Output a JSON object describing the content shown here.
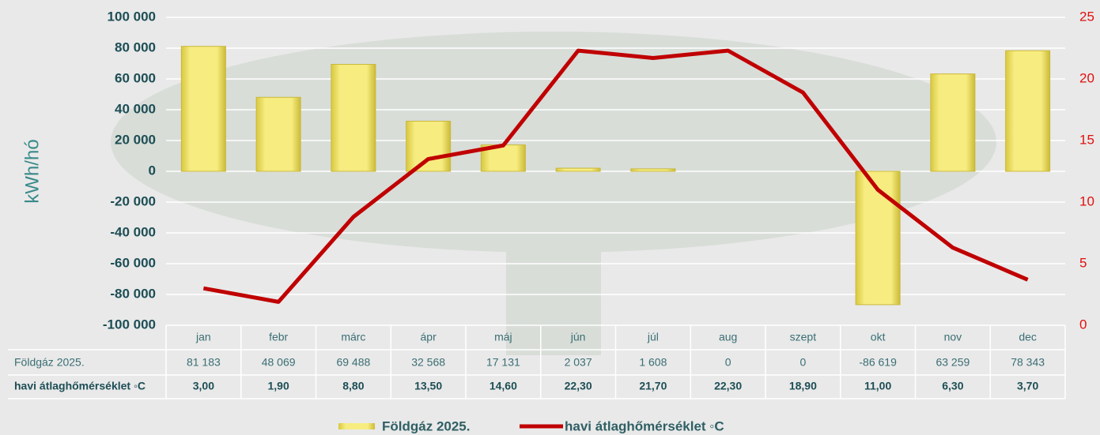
{
  "chart_data": {
    "type": "bar",
    "y_axis_label": "kWh/hó",
    "categories": [
      "jan",
      "febr",
      "márc",
      "ápr",
      "máj",
      "jún",
      "júl",
      "aug",
      "szept",
      "okt",
      "nov",
      "dec"
    ],
    "series": [
      {
        "name": "Földgáz 2025.",
        "color": "#f2e262",
        "values": [
          81183,
          48069,
          69488,
          32568,
          17131,
          2037,
          1608,
          0,
          0,
          -86619,
          63259,
          78343
        ],
        "value_labels": [
          "81 183",
          "48 069",
          "69 488",
          "32 568",
          "17 131",
          "2 037",
          "1 608",
          "0",
          "0",
          "-86 619",
          "63 259",
          "78 343"
        ]
      },
      {
        "name": "havi átlaghőmérséklet ◦C",
        "type": "line",
        "axis": "y2",
        "color": "#c00000",
        "values": [
          3.0,
          1.9,
          8.8,
          13.5,
          14.6,
          22.3,
          21.7,
          22.3,
          18.9,
          11.0,
          6.3,
          3.7
        ],
        "value_labels": [
          "3,00",
          "1,90",
          "8,80",
          "13,50",
          "14,60",
          "22,30",
          "21,70",
          "22,30",
          "18,90",
          "11,00",
          "6,30",
          "3,70"
        ]
      }
    ],
    "ylim": [
      -100000,
      100000
    ],
    "yticks": [
      {
        "value": -100000,
        "label": "-100 000"
      },
      {
        "value": -80000,
        "label": "-80 000"
      },
      {
        "value": -60000,
        "label": "-60 000"
      },
      {
        "value": -40000,
        "label": "-40 000"
      },
      {
        "value": -20000,
        "label": "-20 000"
      },
      0,
      {
        "value": 20000,
        "label": "20 000"
      },
      {
        "value": 40000,
        "label": "40 000"
      },
      {
        "value": 60000,
        "label": "60 000"
      },
      {
        "value": 80000,
        "label": "80 000"
      },
      {
        "value": 100000,
        "label": "100 000"
      }
    ],
    "y2lim": [
      0,
      25
    ],
    "y2ticks": [
      0,
      5,
      10,
      15,
      20,
      25
    ],
    "grid": true
  }
}
